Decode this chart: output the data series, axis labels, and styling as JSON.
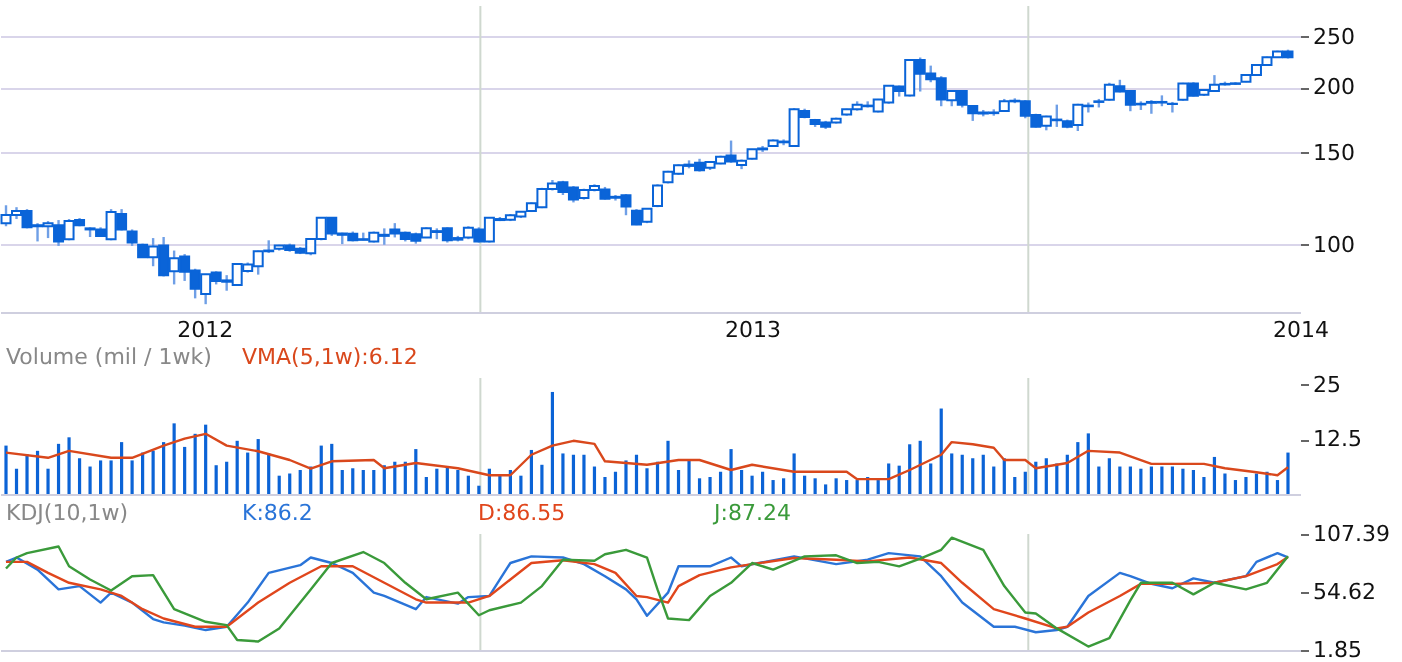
{
  "chart_data": [
    {
      "type": "candlestick",
      "color": "#0a64d8",
      "log": "y",
      "grid": "y",
      "x": [
        "2012-02-20",
        "2012-02-27",
        "2012-03-05",
        "2012-03-12",
        "2012-03-19",
        "2012-03-26",
        "2012-04-02",
        "2012-04-09",
        "2012-04-16",
        "2012-04-23",
        "2012-04-30",
        "2012-05-07",
        "2012-05-14",
        "2012-05-21",
        "2012-05-28",
        "2012-06-04",
        "2012-06-11",
        "2012-06-18",
        "2012-06-25",
        "2012-07-02",
        "2012-07-09",
        "2012-07-16",
        "2012-07-23",
        "2012-07-30",
        "2012-08-06",
        "2012-08-13",
        "2012-08-20",
        "2012-08-27",
        "2012-09-03",
        "2012-09-10",
        "2012-09-17",
        "2012-09-24",
        "2012-10-01",
        "2012-10-08",
        "2012-10-15",
        "2012-10-22",
        "2012-10-29",
        "2012-11-05",
        "2012-11-12",
        "2012-11-19",
        "2012-11-26",
        "2012-12-03",
        "2012-12-10",
        "2012-12-17",
        "2012-12-24",
        "2012-12-31",
        "2013-01-07",
        "2013-01-14",
        "2013-01-21",
        "2013-01-28",
        "2013-02-04",
        "2013-02-11",
        "2013-02-18",
        "2013-02-25",
        "2013-03-04",
        "2013-03-11",
        "2013-03-18",
        "2013-03-25",
        "2013-04-01",
        "2013-04-08",
        "2013-04-15",
        "2013-04-22",
        "2013-04-29",
        "2013-05-06",
        "2013-05-13",
        "2013-05-20",
        "2013-05-27",
        "2013-06-03",
        "2013-06-10",
        "2013-06-17",
        "2013-06-24",
        "2013-07-01",
        "2013-07-08",
        "2013-07-15",
        "2013-07-22",
        "2013-07-29",
        "2013-08-05",
        "2013-08-12",
        "2013-08-19",
        "2013-08-26",
        "2013-09-02",
        "2013-09-09",
        "2013-09-16",
        "2013-09-23",
        "2013-09-30",
        "2013-10-07",
        "2013-10-14",
        "2013-10-21",
        "2013-10-28",
        "2013-11-04",
        "2013-11-11",
        "2013-11-18",
        "2013-11-25",
        "2013-12-02",
        "2013-12-09",
        "2013-12-16",
        "2013-12-23",
        "2013-12-30",
        "2014-01-06",
        "2014-01-13",
        "2014-01-20",
        "2014-01-27",
        "2014-02-03",
        "2014-02-10",
        "2014-02-17",
        "2014-02-24",
        "2014-03-03",
        "2014-03-10",
        "2014-03-17",
        "2014-03-24",
        "2014-03-31",
        "2014-04-07",
        "2014-04-14",
        "2014-04-21",
        "2014-04-28",
        "2014-05-05",
        "2014-05-12",
        "2014-05-19",
        "2014-05-26",
        "2014-06-02",
        "2014-06-09",
        "2014-06-16",
        "2014-06-23"
      ],
      "xlim": [
        "2012-02-16",
        "2014-07-01"
      ],
      "xticks": [
        {
          "value": "2012-07-01",
          "label": "2012"
        },
        {
          "value": "2013-07-01",
          "label": "2013"
        },
        {
          "value": "2014-07-01",
          "label": "2014"
        }
      ],
      "ylim": [
        74.4,
        286
      ],
      "yticks": [
        100,
        150,
        200,
        250
      ],
      "ref_lines": [
        {
          "axis": "x",
          "value": "2013-01-01",
          "color": "#cfd8cf"
        },
        {
          "axis": "x",
          "value": "2014-01-01",
          "color": "#cfd8cf"
        }
      ],
      "ohlc": [
        [
          110,
          119,
          108.5,
          114
        ],
        [
          114,
          118,
          112,
          116
        ],
        [
          116,
          117,
          107.5,
          108
        ],
        [
          109,
          110,
          101.5,
          108.5
        ],
        [
          108.5,
          111,
          103,
          110
        ],
        [
          109,
          111.5,
          99.5,
          101.5
        ],
        [
          102.5,
          112,
          102,
          111
        ],
        [
          111.5,
          112.5,
          108.5,
          109
        ],
        [
          107.5,
          108,
          103.5,
          107
        ],
        [
          107,
          108,
          103.5,
          104
        ],
        [
          102.5,
          117,
          102,
          115.5
        ],
        [
          114.5,
          117,
          106.5,
          107
        ],
        [
          106,
          107,
          99.5,
          101
        ],
        [
          100,
          100.5,
          94.5,
          94.7
        ],
        [
          94.7,
          103,
          91,
          99.2
        ],
        [
          99.7,
          103.5,
          87,
          87.5
        ],
        [
          89,
          97.5,
          84,
          94.3
        ],
        [
          95,
          96,
          85.3,
          88.8
        ],
        [
          89.3,
          90,
          79,
          82.4
        ],
        [
          80.5,
          88,
          77,
          87.8
        ],
        [
          88.5,
          89,
          84,
          85.3
        ],
        [
          85.5,
          87.5,
          81.7,
          85
        ],
        [
          83.8,
          92,
          83.5,
          91.9
        ],
        [
          89.1,
          92.5,
          88.5,
          91.7
        ],
        [
          91,
          97.5,
          87.7,
          97.2
        ],
        [
          97.2,
          102,
          96.5,
          97.5
        ],
        [
          98.3,
          100,
          97.5,
          99.7
        ],
        [
          99.7,
          100.5,
          97,
          97.7
        ],
        [
          98.3,
          99,
          96,
          96.6
        ],
        [
          96.3,
          103,
          95.5,
          102.6
        ],
        [
          102.6,
          113,
          102,
          112.6
        ],
        [
          112.6,
          113,
          104,
          105.1
        ],
        [
          105.1,
          105.5,
          100.3,
          104.5
        ],
        [
          105,
          106,
          101.5,
          102
        ],
        [
          102.5,
          105.5,
          102,
          102.2
        ],
        [
          101.5,
          106,
          101,
          105.4
        ],
        [
          104.5,
          107.5,
          100,
          104
        ],
        [
          107,
          110,
          103.3,
          105.1
        ],
        [
          105.4,
          106,
          101.5,
          102.6
        ],
        [
          104.7,
          105.5,
          100.5,
          101.8
        ],
        [
          103.3,
          108,
          103,
          107.6
        ],
        [
          106.2,
          107.5,
          102.5,
          105.8
        ],
        [
          107.6,
          108,
          101,
          102
        ],
        [
          103,
          104,
          101.5,
          102.3
        ],
        [
          103.3,
          108.5,
          102.5,
          107.8
        ],
        [
          107,
          108,
          101,
          101.5
        ],
        [
          101.5,
          113,
          101,
          112.6
        ],
        [
          112,
          113,
          111,
          111.5
        ],
        [
          111.6,
          114.5,
          111,
          113.9
        ],
        [
          113.3,
          116,
          112.5,
          115.7
        ],
        [
          116,
          120.5,
          115.5,
          120
        ],
        [
          118,
          128.5,
          117.5,
          127.8
        ],
        [
          127.8,
          133,
          127,
          130.9
        ],
        [
          131.7,
          132.5,
          124.5,
          126.2
        ],
        [
          128.7,
          129.5,
          120.5,
          122.1
        ],
        [
          122.8,
          128,
          122,
          127.3
        ],
        [
          127.3,
          130.5,
          126.5,
          129.5
        ],
        [
          127.6,
          129,
          122,
          122.4
        ],
        [
          123.5,
          124.5,
          121.5,
          123
        ],
        [
          124.3,
          125,
          113.9,
          118.3
        ],
        [
          116.2,
          117,
          109,
          109.4
        ],
        [
          110.7,
          117.5,
          110,
          117.2
        ],
        [
          118.6,
          130.5,
          118,
          129.8
        ],
        [
          131.7,
          138.5,
          131,
          137.9
        ],
        [
          136.7,
          142.5,
          136,
          141.9
        ],
        [
          141.5,
          145,
          140,
          142.3
        ],
        [
          143.5,
          146,
          138,
          138.8
        ],
        [
          140.3,
          144.5,
          139,
          144
        ],
        [
          143,
          148,
          142.5,
          147.3
        ],
        [
          148.2,
          158.2,
          143.5,
          144.3
        ],
        [
          142,
          145.5,
          139.5,
          144.8
        ],
        [
          146.1,
          152.5,
          145.5,
          152.2
        ],
        [
          152.2,
          154.5,
          150.5,
          152.8
        ],
        [
          154.5,
          159,
          154,
          158.2
        ],
        [
          157.5,
          159,
          155,
          157
        ],
        [
          154.5,
          182.5,
          154,
          181.5
        ],
        [
          180.2,
          182,
          174.5,
          175.4
        ],
        [
          173.2,
          174,
          168,
          170.2
        ],
        [
          171.2,
          172.5,
          166.5,
          168.2
        ],
        [
          171.2,
          175,
          170.5,
          174.2
        ],
        [
          177.5,
          182,
          176.5,
          181.5
        ],
        [
          181.5,
          188,
          180.5,
          185.3
        ],
        [
          184.5,
          188,
          183,
          184
        ],
        [
          179.8,
          190,
          179,
          189.6
        ],
        [
          187,
          202,
          186,
          201.4
        ],
        [
          200.6,
          201.5,
          192,
          196.7
        ],
        [
          193,
          226,
          192,
          225.5
        ],
        [
          225.5,
          228,
          196.3,
          212.3
        ],
        [
          212.6,
          220,
          204.5,
          207.3
        ],
        [
          208.2,
          210,
          184,
          189.6
        ],
        [
          189,
          197.5,
          184,
          196.7
        ],
        [
          196.7,
          197.5,
          183,
          185.3
        ],
        [
          184.1,
          185,
          172.5,
          178.4
        ],
        [
          179,
          181,
          176,
          178.2
        ],
        [
          178.5,
          181.5,
          176.5,
          179
        ],
        [
          180.2,
          190,
          179.5,
          188
        ],
        [
          188.5,
          190.5,
          186.5,
          188
        ],
        [
          188,
          189,
          174.5,
          176.5
        ],
        [
          177,
          178,
          167.5,
          168.2
        ],
        [
          168.8,
          176.5,
          165.5,
          175.8
        ],
        [
          173.5,
          185.3,
          168,
          173
        ],
        [
          172.3,
          173.5,
          167,
          168.2
        ],
        [
          169.5,
          186,
          165,
          185.3
        ],
        [
          184.5,
          187,
          179,
          184
        ],
        [
          187.5,
          190,
          183,
          188
        ],
        [
          189.3,
          204,
          188.5,
          202.2
        ],
        [
          200.9,
          206.7,
          195.5,
          196.3
        ],
        [
          196.7,
          197.5,
          180,
          185.3
        ],
        [
          186,
          188,
          181,
          185.5
        ],
        [
          187.5,
          189,
          178,
          186.8
        ],
        [
          187,
          193,
          184,
          187.5
        ],
        [
          186,
          187.5,
          179,
          185.8
        ],
        [
          189.3,
          204,
          188.5,
          203.4
        ],
        [
          203.4,
          204.5,
          192,
          192.6
        ],
        [
          193.6,
          198.5,
          192.5,
          197.7
        ],
        [
          196.7,
          211,
          196,
          202.2
        ],
        [
          203,
          205,
          201.5,
          202.5
        ],
        [
          203,
          204.5,
          202,
          203.5
        ],
        [
          205,
          211.5,
          204.5,
          211
        ],
        [
          211.1,
          221,
          210.5,
          220.5
        ],
        [
          220.5,
          229,
          220,
          228.3
        ],
        [
          228.3,
          235,
          227.5,
          234
        ],
        [
          234,
          236,
          227,
          228.3
        ]
      ]
    },
    {
      "type": "bar",
      "title": "Volume (mil / 1wk)",
      "legend": "top left",
      "tick_labels": "y",
      "x": [
        "2012-02-20",
        "2012-02-27",
        "2012-03-05",
        "2012-03-12",
        "2012-03-19",
        "2012-03-26",
        "2012-04-02",
        "2012-04-09",
        "2012-04-16",
        "2012-04-23",
        "2012-04-30",
        "2012-05-07",
        "2012-05-14",
        "2012-05-21",
        "2012-05-28",
        "2012-06-04",
        "2012-06-11",
        "2012-06-18",
        "2012-06-25",
        "2012-07-02",
        "2012-07-09",
        "2012-07-16",
        "2012-07-23",
        "2012-07-30",
        "2012-08-06",
        "2012-08-13",
        "2012-08-20",
        "2012-08-27",
        "2012-09-03",
        "2012-09-10",
        "2012-09-17",
        "2012-09-24",
        "2012-10-01",
        "2012-10-08",
        "2012-10-15",
        "2012-10-22",
        "2012-10-29",
        "2012-11-05",
        "2012-11-12",
        "2012-11-19",
        "2012-11-26",
        "2012-12-03",
        "2012-12-10",
        "2012-12-17",
        "2012-12-24",
        "2012-12-31",
        "2013-01-07",
        "2013-01-14",
        "2013-01-21",
        "2013-01-28",
        "2013-02-04",
        "2013-02-11",
        "2013-02-18",
        "2013-02-25",
        "2013-03-04",
        "2013-03-11",
        "2013-03-18",
        "2013-03-25",
        "2013-04-01",
        "2013-04-08",
        "2013-04-15",
        "2013-04-22",
        "2013-04-29",
        "2013-05-06",
        "2013-05-13",
        "2013-05-20",
        "2013-05-27",
        "2013-06-03",
        "2013-06-10",
        "2013-06-17",
        "2013-06-24",
        "2013-07-01",
        "2013-07-08",
        "2013-07-15",
        "2013-07-22",
        "2013-07-29",
        "2013-08-05",
        "2013-08-12",
        "2013-08-19",
        "2013-08-26",
        "2013-09-02",
        "2013-09-09",
        "2013-09-16",
        "2013-09-23",
        "2013-09-30",
        "2013-10-07",
        "2013-10-14",
        "2013-10-21",
        "2013-10-28",
        "2013-11-04",
        "2013-11-11",
        "2013-11-18",
        "2013-11-25",
        "2013-12-02",
        "2013-12-09",
        "2013-12-16",
        "2013-12-23",
        "2013-12-30",
        "2014-01-06",
        "2014-01-13",
        "2014-01-20",
        "2014-01-27",
        "2014-02-03",
        "2014-02-10",
        "2014-02-17",
        "2014-02-24",
        "2014-03-03",
        "2014-03-10",
        "2014-03-17",
        "2014-03-24",
        "2014-03-31",
        "2014-04-07",
        "2014-04-14",
        "2014-04-21",
        "2014-04-28",
        "2014-05-05",
        "2014-05-12",
        "2014-05-19",
        "2014-05-26",
        "2014-06-02",
        "2014-06-09",
        "2014-06-16",
        "2014-06-23"
      ],
      "xlim": [
        "2012-02-16",
        "2014-07-01"
      ],
      "ylim": [
        0,
        26.6
      ],
      "yticks": [
        12.5,
        25
      ],
      "ref_lines": [
        {
          "axis": "x",
          "value": "2013-01-01",
          "color": "#cfd8cf"
        },
        {
          "axis": "x",
          "value": "2014-01-01",
          "color": "#cfd8cf"
        }
      ],
      "series": [
        {
          "type": "bar",
          "color": "#0b63d6",
          "values": [
            11.1,
            5.8,
            9.1,
            9.9,
            5.8,
            11.5,
            13,
            8.2,
            6.3,
            7.7,
            7.7,
            11.9,
            7.7,
            9.5,
            9.9,
            11.9,
            16.2,
            10.8,
            13.8,
            15.9,
            6.6,
            7.4,
            12.2,
            9.5,
            12.6,
            9.3,
            4.2,
            4.7,
            5.5,
            6.3,
            11.1,
            11.5,
            5.5,
            5.9,
            5.5,
            5.5,
            6.6,
            7.4,
            7.4,
            10.3,
            3.9,
            5.8,
            6.3,
            5.5,
            4.2,
            1.9,
            5.8,
            4.2,
            5.5,
            4.2,
            10.1,
            6.7,
            23.4,
            9.3,
            9,
            9,
            6.3,
            3.9,
            5.1,
            7.7,
            9,
            5.9,
            7.4,
            12.2,
            5.5,
            7.7,
            3.6,
            3.9,
            5.1,
            10.3,
            5.5,
            4.2,
            5.1,
            3.2,
            3.6,
            9.3,
            4.2,
            3.6,
            2.2,
            3.6,
            3.2,
            3.2,
            3.9,
            3.2,
            7,
            6.5,
            11.4,
            12.2,
            7,
            19.6,
            9.3,
            9,
            8.2,
            9,
            6.3,
            8.2,
            3.9,
            5.1,
            7.4,
            8.2,
            7,
            9,
            11.9,
            13.9,
            6.3,
            8.2,
            6.3,
            6.3,
            5.8,
            6.3,
            6.3,
            6.3,
            5.8,
            5.5,
            3.9,
            8.5,
            4.7,
            3.2,
            3.9,
            4.7,
            5.1,
            3.2,
            9.5
          ]
        },
        {
          "type": "line",
          "name": "VMA(5,1w):6.12",
          "color": "#d9481c",
          "x": [
            "2012-02-20",
            "2012-03-19",
            "2012-04-02",
            "2012-04-30",
            "2012-05-14",
            "2012-06-04",
            "2012-06-18",
            "2012-07-02",
            "2012-07-16",
            "2012-08-06",
            "2012-08-27",
            "2012-09-10",
            "2012-09-24",
            "2012-10-22",
            "2012-10-29",
            "2012-11-19",
            "2012-12-17",
            "2013-01-07",
            "2013-01-21",
            "2013-02-04",
            "2013-02-18",
            "2013-03-04",
            "2013-03-18",
            "2013-03-25",
            "2013-04-22",
            "2013-05-13",
            "2013-05-27",
            "2013-06-17",
            "2013-07-01",
            "2013-07-29",
            "2013-09-02",
            "2013-09-09",
            "2013-09-30",
            "2013-10-14",
            "2013-11-04",
            "2013-11-11",
            "2013-11-25",
            "2013-12-09",
            "2013-12-16",
            "2013-12-30",
            "2014-01-06",
            "2014-01-27",
            "2014-02-10",
            "2014-03-03",
            "2014-03-24",
            "2014-04-28",
            "2014-05-12",
            "2014-06-02",
            "2014-06-16",
            "2014-06-23"
          ],
          "values": [
            9.5,
            8.3,
            9.9,
            8.3,
            8.3,
            11.1,
            12.7,
            13.8,
            11.1,
            9.8,
            7.8,
            5.8,
            7.5,
            7.8,
            5.9,
            7.1,
            5.9,
            4.3,
            4.3,
            9,
            11.1,
            12.2,
            11.5,
            7.5,
            6.7,
            7.8,
            7.8,
            5.5,
            6.7,
            5.1,
            5.1,
            3.4,
            3.4,
            5.5,
            9,
            11.9,
            11.4,
            10.6,
            7.8,
            7.8,
            5.9,
            7.1,
            9.9,
            9.5,
            6.9,
            6.9,
            5.9,
            5,
            4.3,
            6.12
          ]
        }
      ]
    },
    {
      "type": "line",
      "title": "KDJ(10,1w)",
      "legend": "top left",
      "tick_labels": "y",
      "xlim": [
        "2012-02-16",
        "2014-07-01"
      ],
      "ylim": [
        1.85,
        107.39
      ],
      "yticks": [
        1.85,
        54.62,
        107.39
      ],
      "ref_lines": [
        {
          "axis": "x",
          "value": "2013-01-01",
          "color": "#cfd8cf"
        },
        {
          "axis": "x",
          "value": "2014-01-01",
          "color": "#cfd8cf"
        }
      ],
      "series": [
        {
          "name": "K:86.2",
          "color": "#2a74d8",
          "x": [
            "2012-02-20",
            "2012-02-27",
            "2012-03-12",
            "2012-03-26",
            "2012-04-09",
            "2012-04-23",
            "2012-04-30",
            "2012-05-14",
            "2012-05-28",
            "2012-06-04",
            "2012-06-18",
            "2012-07-02",
            "2012-07-16",
            "2012-07-30",
            "2012-08-13",
            "2012-09-03",
            "2012-09-10",
            "2012-09-24",
            "2012-10-08",
            "2012-10-22",
            "2012-10-29",
            "2012-11-19",
            "2012-11-26",
            "2012-12-17",
            "2012-12-24",
            "2013-01-07",
            "2013-01-21",
            "2013-02-04",
            "2013-02-25",
            "2013-03-11",
            "2013-03-25",
            "2013-04-08",
            "2013-04-15",
            "2013-04-22",
            "2013-05-06",
            "2013-05-13",
            "2013-06-03",
            "2013-06-17",
            "2013-06-24",
            "2013-07-29",
            "2013-08-26",
            "2013-09-16",
            "2013-09-30",
            "2013-10-21",
            "2013-11-04",
            "2013-11-18",
            "2013-12-09",
            "2013-12-23",
            "2014-01-06",
            "2014-01-20",
            "2014-01-27",
            "2014-02-10",
            "2014-03-03",
            "2014-03-10",
            "2014-03-24",
            "2014-04-07",
            "2014-04-21",
            "2014-05-05",
            "2014-05-26",
            "2014-06-02",
            "2014-06-16",
            "2014-06-23"
          ],
          "values": [
            82,
            86,
            75,
            57,
            60,
            45,
            54,
            45,
            30,
            27,
            24,
            20,
            23,
            45,
            72,
            79,
            86,
            81,
            72,
            54,
            51,
            39,
            50,
            44,
            50,
            51,
            81,
            87,
            86,
            80,
            69,
            57,
            48,
            33,
            54,
            78,
            78,
            86,
            78,
            87,
            80,
            84,
            90,
            87,
            69,
            45,
            23,
            23,
            18,
            20,
            23,
            51,
            72,
            69,
            62,
            58,
            67,
            63,
            69,
            82,
            90,
            86.2
          ]
        },
        {
          "name": "D:86.55",
          "color": "#e0461c",
          "x": [
            "2012-02-20",
            "2012-03-05",
            "2012-03-19",
            "2012-04-02",
            "2012-04-23",
            "2012-05-07",
            "2012-05-21",
            "2012-06-04",
            "2012-06-25",
            "2012-07-16",
            "2012-08-06",
            "2012-08-27",
            "2012-09-17",
            "2012-10-08",
            "2012-10-29",
            "2012-11-19",
            "2012-11-26",
            "2012-12-24",
            "2013-01-07",
            "2013-01-21",
            "2013-02-04",
            "2013-02-25",
            "2013-03-18",
            "2013-04-01",
            "2013-04-15",
            "2013-04-22",
            "2013-05-06",
            "2013-05-13",
            "2013-05-27",
            "2013-06-17",
            "2013-07-01",
            "2013-07-29",
            "2013-08-26",
            "2013-09-16",
            "2013-10-14",
            "2013-11-04",
            "2013-11-18",
            "2013-12-09",
            "2013-12-30",
            "2014-01-20",
            "2014-01-27",
            "2014-02-10",
            "2014-03-03",
            "2014-03-17",
            "2014-04-07",
            "2014-05-05",
            "2014-05-26",
            "2014-06-16",
            "2014-06-23"
          ],
          "values": [
            82,
            82,
            72,
            63,
            57,
            51,
            39,
            30.5,
            23,
            23,
            45,
            63,
            78,
            78,
            63,
            48,
            45,
            45,
            51,
            66,
            81,
            83.5,
            80,
            72,
            51,
            50,
            45,
            60,
            70,
            77,
            80,
            85.5,
            84,
            82.5,
            86,
            81,
            63,
            39,
            30.5,
            21.5,
            23,
            36,
            51,
            62,
            62,
            63,
            69,
            80,
            86.55
          ]
        },
        {
          "name": "J:87.24",
          "color": "#3a9a3a",
          "x": [
            "2012-02-20",
            "2012-02-27",
            "2012-03-05",
            "2012-03-26",
            "2012-04-02",
            "2012-04-16",
            "2012-04-30",
            "2012-05-14",
            "2012-05-28",
            "2012-06-11",
            "2012-07-02",
            "2012-07-16",
            "2012-07-23",
            "2012-08-06",
            "2012-08-20",
            "2012-09-10",
            "2012-09-24",
            "2012-10-15",
            "2012-10-29",
            "2012-11-12",
            "2012-11-26",
            "2012-12-17",
            "2012-12-31",
            "2013-01-07",
            "2013-01-28",
            "2013-02-11",
            "2013-02-25",
            "2013-03-18",
            "2013-03-25",
            "2013-04-08",
            "2013-04-22",
            "2013-04-29",
            "2013-05-06",
            "2013-05-20",
            "2013-06-03",
            "2013-06-17",
            "2013-07-01",
            "2013-07-15",
            "2013-08-05",
            "2013-08-26",
            "2013-09-09",
            "2013-09-23",
            "2013-10-07",
            "2013-10-21",
            "2013-11-04",
            "2013-11-11",
            "2013-12-02",
            "2013-12-16",
            "2013-12-30",
            "2014-01-06",
            "2014-01-20",
            "2014-02-10",
            "2014-02-24",
            "2014-03-10",
            "2014-03-17",
            "2014-04-07",
            "2014-04-21",
            "2014-05-05",
            "2014-05-26",
            "2014-06-09",
            "2014-06-23"
          ],
          "values": [
            76,
            86,
            90,
            96,
            78,
            66,
            56,
            69,
            70,
            39,
            27.5,
            24.5,
            11,
            9.6,
            21.5,
            57,
            81,
            91,
            81,
            63,
            48,
            54,
            33.5,
            38,
            45,
            60,
            84,
            83,
            89,
            93,
            86,
            57,
            30.5,
            29,
            51,
            63,
            81,
            75,
            87,
            88,
            81,
            82,
            78,
            85,
            93,
            104,
            93,
            60,
            36,
            35,
            21.5,
            5,
            12.6,
            47,
            63,
            63,
            52.5,
            63,
            57,
            63,
            87.24
          ]
        }
      ]
    }
  ]
}
